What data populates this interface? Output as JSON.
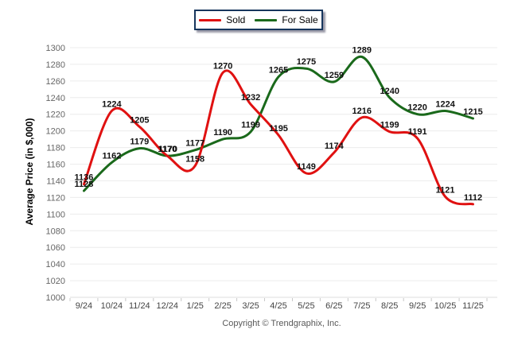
{
  "footer": {
    "copyright": "Copyright © Trendgraphix, Inc."
  },
  "chart_data": {
    "type": "line",
    "title": "",
    "xlabel": "",
    "ylabel": "Average Price (in $,000)",
    "categories": [
      "9/24",
      "10/24",
      "11/24",
      "12/24",
      "1/25",
      "2/25",
      "3/25",
      "4/25",
      "5/25",
      "6/25",
      "7/25",
      "8/25",
      "9/25",
      "10/25",
      "11/25"
    ],
    "series": [
      {
        "name": "For Sale",
        "color": "#1a691b",
        "values": [
          1128,
          1162,
          1179,
          1170,
          1177,
          1190,
          1199,
          1265,
          1275,
          1259,
          1289,
          1240,
          1220,
          1224,
          1215
        ]
      },
      {
        "name": "Sold",
        "color": "#e01111",
        "values": [
          1136,
          1224,
          1205,
          1170,
          1158,
          1270,
          1232,
          1195,
          1149,
          1174,
          1216,
          1199,
          1191,
          1121,
          1112
        ]
      }
    ],
    "ylim": [
      1000,
      1300
    ],
    "ytick_step": 20,
    "grid": "horizontal",
    "smooth": true,
    "legend_position": "top-center",
    "colors": {
      "gridline": "#ececec",
      "baseline": "#dcdcdc",
      "axis_tick": "#c8c8c8",
      "ytick_text": "#666666",
      "xtick_text": "#444444",
      "data_label": "#111111",
      "legend_border": "#17365d"
    }
  }
}
